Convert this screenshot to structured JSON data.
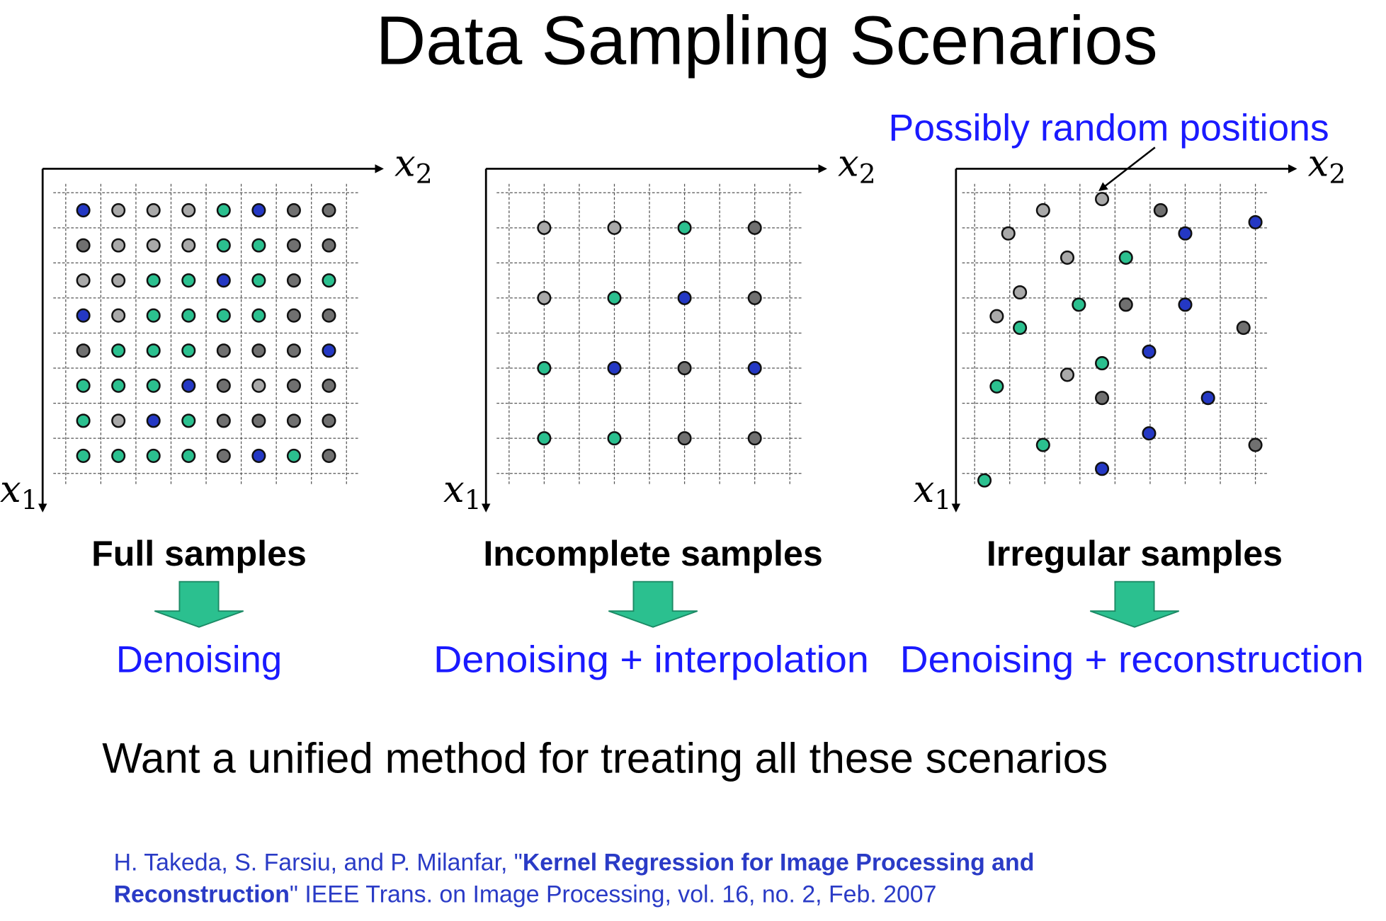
{
  "title": "Data Sampling Scenarios",
  "axis_labels": {
    "x1": {
      "var": "x",
      "sub": "1"
    },
    "x2": {
      "var": "x",
      "sub": "2"
    }
  },
  "annotation": "Possibly random positions",
  "colors": {
    "B": "#2438c4",
    "G": "#2bc08f",
    "L": "#a9a9a9",
    "D": "#707070",
    "text_blue": "#1a1aff",
    "arrow_green": "#2bc08f"
  },
  "panels": [
    {
      "label": "Full samples",
      "result": "Denoising",
      "type": "full",
      "dots": [
        [
          "B",
          "L",
          "L",
          "L",
          "G",
          "B",
          "D",
          "D"
        ],
        [
          "D",
          "L",
          "L",
          "L",
          "G",
          "G",
          "D",
          "D"
        ],
        [
          "L",
          "L",
          "G",
          "G",
          "B",
          "G",
          "D",
          "G"
        ],
        [
          "B",
          "L",
          "G",
          "G",
          "G",
          "G",
          "D",
          "D"
        ],
        [
          "D",
          "G",
          "G",
          "G",
          "D",
          "D",
          "D",
          "B"
        ],
        [
          "G",
          "G",
          "G",
          "B",
          "D",
          "L",
          "D",
          "D"
        ],
        [
          "G",
          "L",
          "B",
          "G",
          "D",
          "D",
          "D",
          "D"
        ],
        [
          "G",
          "G",
          "G",
          "G",
          "D",
          "B",
          "G",
          "D"
        ]
      ]
    },
    {
      "label": "Incomplete samples",
      "result": "Denoising + interpolation",
      "type": "incomplete",
      "dots": [
        [
          "L",
          "L",
          "G",
          "D"
        ],
        [
          "L",
          "G",
          "B",
          "D"
        ],
        [
          "G",
          "B",
          "D",
          "B"
        ],
        [
          "G",
          "G",
          "D",
          "D"
        ]
      ]
    },
    {
      "label": "Irregular samples",
      "result": "Denoising + reconstruction",
      "type": "irregular",
      "points": [
        [
          1.95,
          0.5,
          "L"
        ],
        [
          3.63,
          0.18,
          "L"
        ],
        [
          5.3,
          0.5,
          "D"
        ],
        [
          8.0,
          0.84,
          "B"
        ],
        [
          0.96,
          1.16,
          "L"
        ],
        [
          6.0,
          1.16,
          "B"
        ],
        [
          2.64,
          1.85,
          "L"
        ],
        [
          4.31,
          1.85,
          "G"
        ],
        [
          1.29,
          2.84,
          "L"
        ],
        [
          2.97,
          3.19,
          "G"
        ],
        [
          4.31,
          3.19,
          "D"
        ],
        [
          6.0,
          3.19,
          "B"
        ],
        [
          0.63,
          3.52,
          "L"
        ],
        [
          1.29,
          3.85,
          "G"
        ],
        [
          7.66,
          3.85,
          "D"
        ],
        [
          4.97,
          4.53,
          "B"
        ],
        [
          3.63,
          4.86,
          "G"
        ],
        [
          2.64,
          5.19,
          "L"
        ],
        [
          0.63,
          5.52,
          "G"
        ],
        [
          3.63,
          5.85,
          "D"
        ],
        [
          6.65,
          5.85,
          "B"
        ],
        [
          4.97,
          6.86,
          "B"
        ],
        [
          1.95,
          7.19,
          "G"
        ],
        [
          8.0,
          7.19,
          "D"
        ],
        [
          3.63,
          7.87,
          "B"
        ],
        [
          0.28,
          8.2,
          "G"
        ]
      ]
    }
  ],
  "statement": "Want a unified method for treating all these scenarios",
  "citation": {
    "part1": "H. Takeda, S. Farsiu, and P. Milanfar, \"",
    "bold1": "Kernel Regression for Image Processing and",
    "bold2": "Reconstruction",
    "part2": "\" IEEE Trans. on Image Processing, vol. 16, no. 2, Feb. 2007"
  }
}
